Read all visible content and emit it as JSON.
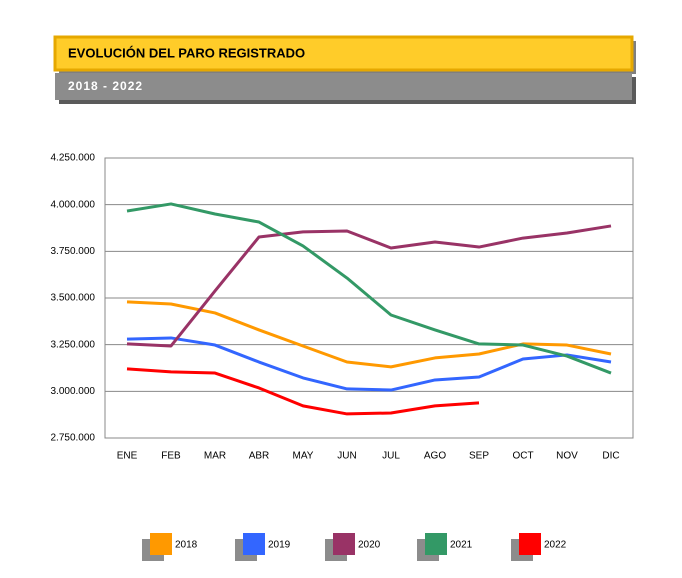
{
  "chart_data": {
    "type": "line",
    "title": "EVOLUCIÓN DEL PARO REGISTRADO",
    "subtitle": "2018 - 2022",
    "categories": [
      "ENE",
      "FEB",
      "MAR",
      "ABR",
      "MAY",
      "JUN",
      "JUL",
      "AGO",
      "SEP",
      "OCT",
      "NOV",
      "DIC"
    ],
    "series": [
      {
        "name": "2018",
        "color": "#ff9900",
        "values": [
          3479000,
          3468000,
          3420000,
          3329000,
          3243000,
          3157000,
          3131000,
          3179000,
          3200000,
          3254000,
          3248000,
          3200000
        ]
      },
      {
        "name": "2019",
        "color": "#3366ff",
        "values": [
          3280000,
          3286000,
          3248000,
          3157000,
          3072000,
          3013000,
          3007000,
          3061000,
          3077000,
          3173000,
          3195000,
          3157000
        ]
      },
      {
        "name": "2020",
        "color": "#993366",
        "values": [
          3254000,
          3243000,
          3538000,
          3827000,
          3854000,
          3859000,
          3768000,
          3800000,
          3773000,
          3821000,
          3848000,
          3886000
        ]
      },
      {
        "name": "2021",
        "color": "#339966",
        "values": [
          3966000,
          4004000,
          3950000,
          3907000,
          3779000,
          3607000,
          3409000,
          3329000,
          3254000,
          3248000,
          3189000,
          3098000
        ]
      },
      {
        "name": "2022",
        "color": "#ff0000",
        "values": [
          3120000,
          3104000,
          3098000,
          3018000,
          2922000,
          2879000,
          2884000,
          2922000,
          2938000,
          null,
          null,
          null
        ]
      }
    ],
    "ylim": [
      2750000,
      4250000
    ],
    "yticks": [
      {
        "value": 2750000,
        "label": "2.750.000"
      },
      {
        "value": 3000000,
        "label": "3.000.000"
      },
      {
        "value": 3250000,
        "label": "3.250.000"
      },
      {
        "value": 3500000,
        "label": "3.500.000"
      },
      {
        "value": 3750000,
        "label": "3.750.000"
      },
      {
        "value": 4000000,
        "label": "4.000.000"
      },
      {
        "value": 4250000,
        "label": "4.250.000"
      }
    ],
    "grid": true,
    "legend": "bottom"
  }
}
